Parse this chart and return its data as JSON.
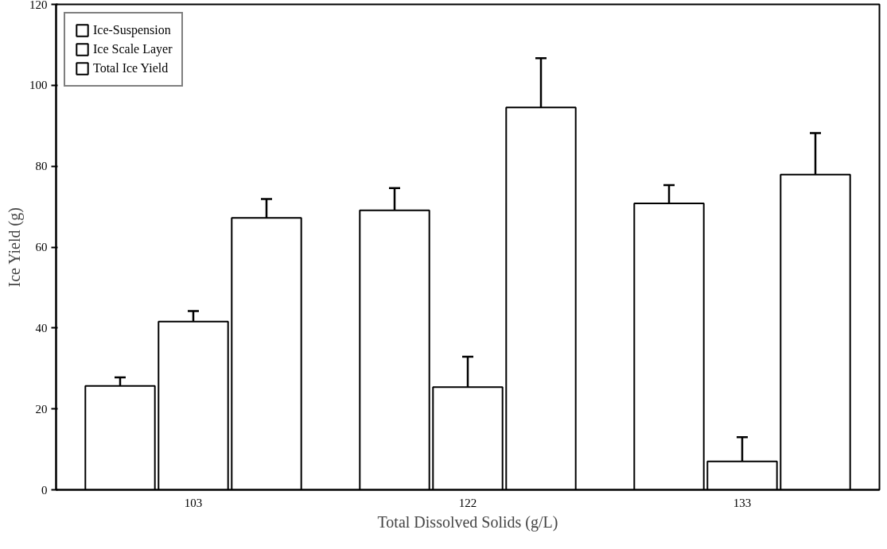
{
  "chart_data": {
    "type": "bar",
    "xlabel": "Total Dissolved Solids (g/L)",
    "ylabel": "Ice Yield (g)",
    "categories": [
      "103",
      "122",
      "133"
    ],
    "series": [
      {
        "name": "Ice-Suspension",
        "color": "#ffffff",
        "values": [
          25.7,
          69.1,
          70.8
        ],
        "errors": [
          2.1,
          5.5,
          4.5
        ]
      },
      {
        "name": "Ice Scale Layer",
        "color": "#ffffff",
        "values": [
          41.6,
          25.4,
          7.0
        ],
        "errors": [
          2.6,
          7.5,
          6.0
        ]
      },
      {
        "name": "Total Ice Yield",
        "color": "#ffffff",
        "values": [
          67.2,
          94.5,
          77.9
        ],
        "errors": [
          4.7,
          12.2,
          10.3
        ]
      }
    ],
    "ylim": [
      0,
      120
    ],
    "yticks": [
      0,
      20,
      40,
      60,
      80,
      100,
      120
    ],
    "grid": false,
    "legend": "top left"
  }
}
